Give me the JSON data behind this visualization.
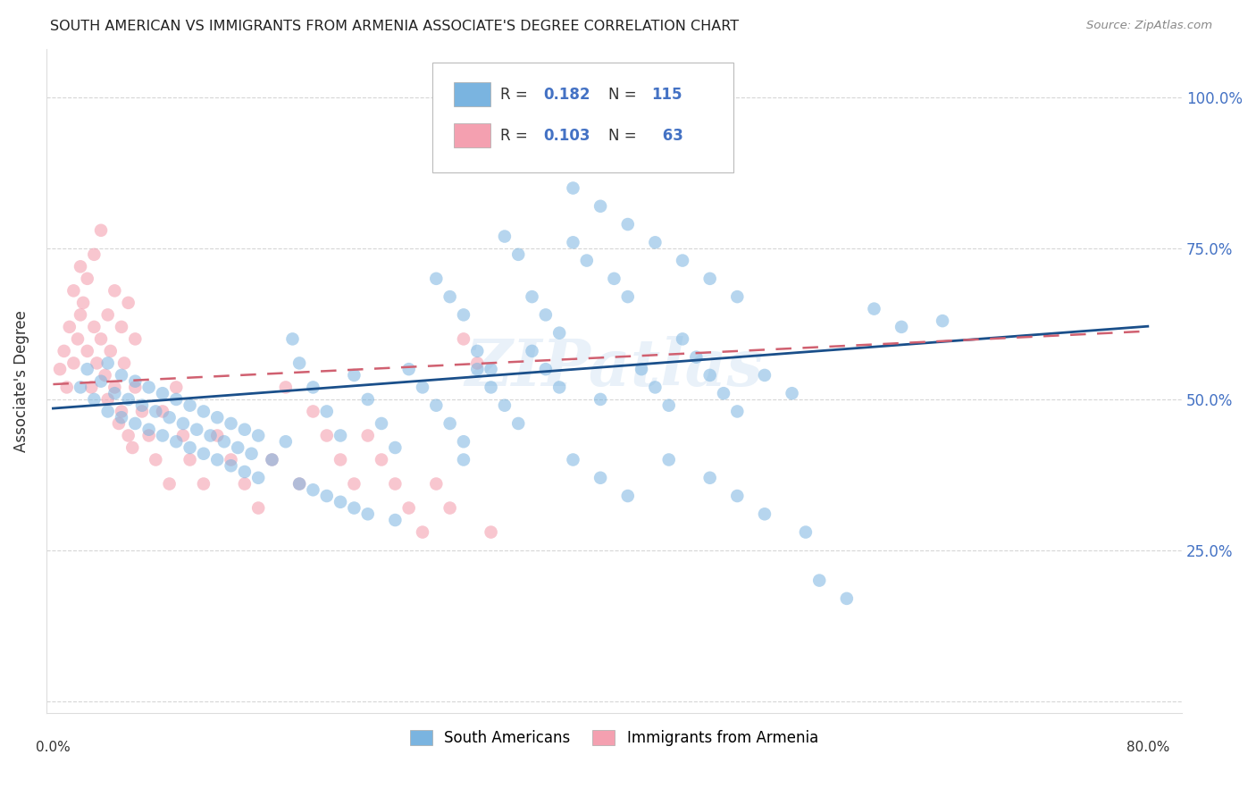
{
  "title": "SOUTH AMERICAN VS IMMIGRANTS FROM ARMENIA ASSOCIATE'S DEGREE CORRELATION CHART",
  "source": "Source: ZipAtlas.com",
  "ylabel": "Associate's Degree",
  "blue_color": "#7ab4e0",
  "pink_color": "#f4a0b0",
  "blue_line_color": "#1a4f8a",
  "pink_line_color": "#d06070",
  "watermark": "ZIPatlas",
  "blue_R": 0.182,
  "blue_N": 115,
  "pink_R": 0.103,
  "pink_N": 63,
  "xlim": [
    0.0,
    0.8
  ],
  "ylim": [
    0.0,
    1.05
  ],
  "ytick_vals": [
    0.0,
    0.25,
    0.5,
    0.75,
    1.0
  ],
  "ytick_labels": [
    "",
    "25.0%",
    "50.0%",
    "75.0%",
    "100.0%"
  ],
  "blue_scatter_x": [
    0.02,
    0.025,
    0.03,
    0.035,
    0.04,
    0.04,
    0.045,
    0.05,
    0.05,
    0.055,
    0.06,
    0.06,
    0.065,
    0.07,
    0.07,
    0.075,
    0.08,
    0.08,
    0.085,
    0.09,
    0.09,
    0.095,
    0.1,
    0.1,
    0.105,
    0.11,
    0.11,
    0.115,
    0.12,
    0.12,
    0.125,
    0.13,
    0.13,
    0.135,
    0.14,
    0.14,
    0.145,
    0.15,
    0.15,
    0.16,
    0.17,
    0.175,
    0.18,
    0.18,
    0.19,
    0.19,
    0.2,
    0.2,
    0.21,
    0.21,
    0.22,
    0.22,
    0.23,
    0.23,
    0.24,
    0.25,
    0.25,
    0.26,
    0.27,
    0.28,
    0.29,
    0.3,
    0.3,
    0.31,
    0.32,
    0.33,
    0.34,
    0.35,
    0.36,
    0.37,
    0.28,
    0.29,
    0.3,
    0.31,
    0.32,
    0.33,
    0.34,
    0.35,
    0.36,
    0.37,
    0.38,
    0.39,
    0.4,
    0.41,
    0.42,
    0.43,
    0.44,
    0.45,
    0.46,
    0.47,
    0.48,
    0.49,
    0.5,
    0.52,
    0.54,
    0.56,
    0.58,
    0.6,
    0.62,
    0.65,
    0.38,
    0.4,
    0.42,
    0.45,
    0.48,
    0.5,
    0.52,
    0.55,
    0.38,
    0.4,
    0.42,
    0.44,
    0.46,
    0.48,
    0.5
  ],
  "blue_scatter_y": [
    0.52,
    0.55,
    0.5,
    0.53,
    0.56,
    0.48,
    0.51,
    0.54,
    0.47,
    0.5,
    0.53,
    0.46,
    0.49,
    0.52,
    0.45,
    0.48,
    0.51,
    0.44,
    0.47,
    0.5,
    0.43,
    0.46,
    0.49,
    0.42,
    0.45,
    0.48,
    0.41,
    0.44,
    0.47,
    0.4,
    0.43,
    0.46,
    0.39,
    0.42,
    0.45,
    0.38,
    0.41,
    0.44,
    0.37,
    0.4,
    0.43,
    0.6,
    0.56,
    0.36,
    0.52,
    0.35,
    0.48,
    0.34,
    0.44,
    0.33,
    0.54,
    0.32,
    0.5,
    0.31,
    0.46,
    0.42,
    0.3,
    0.55,
    0.52,
    0.49,
    0.46,
    0.43,
    0.4,
    0.55,
    0.52,
    0.49,
    0.46,
    0.67,
    0.64,
    0.61,
    0.7,
    0.67,
    0.64,
    0.58,
    0.55,
    0.77,
    0.74,
    0.58,
    0.55,
    0.52,
    0.76,
    0.73,
    0.5,
    0.7,
    0.67,
    0.55,
    0.52,
    0.49,
    0.6,
    0.57,
    0.54,
    0.51,
    0.48,
    0.54,
    0.51,
    0.2,
    0.17,
    0.65,
    0.62,
    0.63,
    0.4,
    0.37,
    0.34,
    0.4,
    0.37,
    0.34,
    0.31,
    0.28,
    0.85,
    0.82,
    0.79,
    0.76,
    0.73,
    0.7,
    0.67
  ],
  "pink_scatter_x": [
    0.005,
    0.008,
    0.01,
    0.012,
    0.015,
    0.015,
    0.018,
    0.02,
    0.02,
    0.022,
    0.025,
    0.025,
    0.028,
    0.03,
    0.03,
    0.032,
    0.035,
    0.035,
    0.038,
    0.04,
    0.04,
    0.042,
    0.045,
    0.045,
    0.048,
    0.05,
    0.05,
    0.052,
    0.055,
    0.055,
    0.058,
    0.06,
    0.06,
    0.065,
    0.07,
    0.075,
    0.08,
    0.085,
    0.09,
    0.095,
    0.1,
    0.11,
    0.12,
    0.13,
    0.14,
    0.15,
    0.16,
    0.17,
    0.18,
    0.19,
    0.2,
    0.21,
    0.22,
    0.23,
    0.24,
    0.25,
    0.26,
    0.27,
    0.28,
    0.29,
    0.3,
    0.31,
    0.32
  ],
  "pink_scatter_y": [
    0.55,
    0.58,
    0.52,
    0.62,
    0.56,
    0.68,
    0.6,
    0.64,
    0.72,
    0.66,
    0.58,
    0.7,
    0.52,
    0.62,
    0.74,
    0.56,
    0.6,
    0.78,
    0.54,
    0.64,
    0.5,
    0.58,
    0.52,
    0.68,
    0.46,
    0.62,
    0.48,
    0.56,
    0.44,
    0.66,
    0.42,
    0.52,
    0.6,
    0.48,
    0.44,
    0.4,
    0.48,
    0.36,
    0.52,
    0.44,
    0.4,
    0.36,
    0.44,
    0.4,
    0.36,
    0.32,
    0.4,
    0.52,
    0.36,
    0.48,
    0.44,
    0.4,
    0.36,
    0.44,
    0.4,
    0.36,
    0.32,
    0.28,
    0.36,
    0.32,
    0.6,
    0.56,
    0.28
  ]
}
